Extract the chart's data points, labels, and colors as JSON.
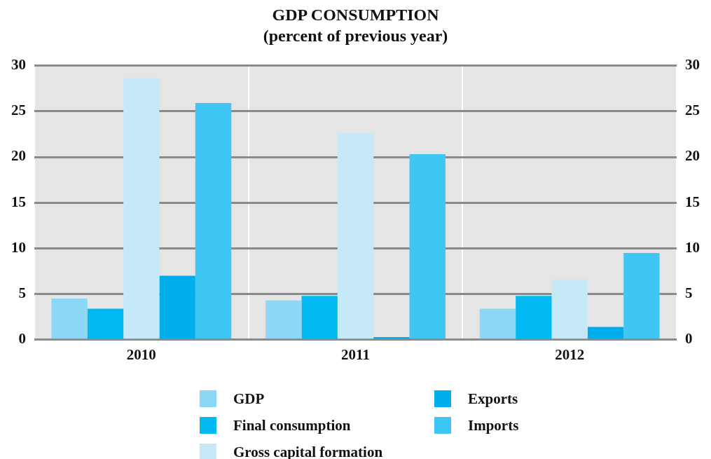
{
  "chart_data": {
    "type": "bar",
    "title": "GDP CONSUMPTION",
    "subtitle": "(percent of previous year)",
    "categories": [
      "2010",
      "2011",
      "2012"
    ],
    "series": [
      {
        "name": "GDP",
        "color": "#8dd7f6",
        "values": [
          4.5,
          4.3,
          3.4
        ]
      },
      {
        "name": "Final consumption",
        "color": "#00b9f1",
        "values": [
          3.4,
          4.8,
          4.8
        ]
      },
      {
        "name": "Gross capital formation",
        "color": "#c6e9f8",
        "values": [
          28.6,
          22.6,
          6.6
        ]
      },
      {
        "name": "Exports",
        "color": "#00aeeb",
        "values": [
          7.0,
          0.3,
          1.4
        ]
      },
      {
        "name": "Imports",
        "color": "#40c6f4",
        "values": [
          25.9,
          20.3,
          9.5
        ]
      }
    ],
    "ylim": [
      0,
      30
    ],
    "yticks": [
      0,
      5,
      10,
      15,
      20,
      25,
      30
    ],
    "y2lim": [
      0,
      30
    ],
    "y2ticks": [
      0,
      5,
      10,
      15,
      20,
      25,
      30
    ],
    "grid": true,
    "legend": "bottom"
  }
}
